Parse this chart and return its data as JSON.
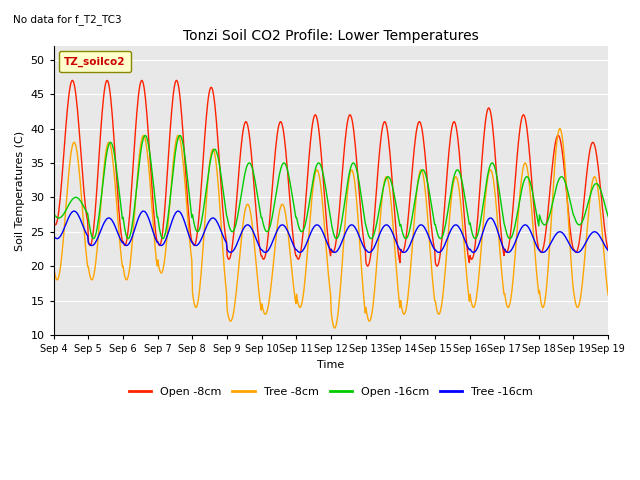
{
  "title": "Tonzi Soil CO2 Profile: Lower Temperatures",
  "subtitle": "No data for f_T2_TC3",
  "xlabel": "Time",
  "ylabel": "Soil Temperatures (C)",
  "ylim": [
    10,
    52
  ],
  "yticks": [
    10,
    15,
    20,
    25,
    30,
    35,
    40,
    45,
    50
  ],
  "xtick_labels": [
    "Sep 4",
    "Sep 5",
    "Sep 6",
    "Sep 7",
    "Sep 8",
    "Sep 9",
    "Sep 10",
    "Sep 11",
    "Sep 12",
    "Sep 13",
    "Sep 14",
    "Sep 15",
    "Sep 16",
    "Sep 17",
    "Sep 18",
    "Sep 19",
    "Sep 19"
  ],
  "legend_label": "TZ_soilco2",
  "line_labels": [
    "Open -8cm",
    "Tree -8cm",
    "Open -16cm",
    "Tree -16cm"
  ],
  "line_colors": [
    "#FF2200",
    "#FFA500",
    "#00CC00",
    "#0000FF"
  ],
  "background_color": "#E8E8E8",
  "n_days": 16,
  "points_per_day": 48,
  "open8_day_max": [
    47,
    47,
    47,
    47,
    46,
    41,
    41,
    42,
    42,
    41,
    41,
    41,
    43,
    42,
    39,
    38
  ],
  "open8_day_min": [
    26,
    23,
    23,
    23,
    23,
    21,
    21,
    21,
    22,
    20,
    22,
    20,
    21,
    22,
    22,
    22
  ],
  "tree8_day_max": [
    38,
    38,
    39,
    39,
    37,
    29,
    29,
    34,
    34,
    33,
    34,
    33,
    34,
    35,
    40,
    33
  ],
  "tree8_day_min": [
    18,
    18,
    18,
    19,
    14,
    12,
    13,
    14,
    11,
    12,
    13,
    13,
    14,
    14,
    14,
    14
  ],
  "open16_day_max": [
    30,
    38,
    39,
    39,
    37,
    35,
    35,
    35,
    35,
    33,
    34,
    34,
    35,
    33,
    33,
    32
  ],
  "open16_day_min": [
    27,
    24,
    24,
    24,
    25,
    25,
    25,
    25,
    24,
    24,
    24,
    24,
    24,
    24,
    26,
    26
  ],
  "tree16_day_max": [
    28,
    27,
    28,
    28,
    27,
    26,
    26,
    26,
    26,
    26,
    26,
    26,
    27,
    26,
    25,
    25
  ],
  "tree16_day_min": [
    24,
    23,
    23,
    23,
    23,
    22,
    22,
    22,
    22,
    22,
    22,
    22,
    22,
    22,
    22,
    22
  ],
  "figwidth": 6.4,
  "figheight": 4.8,
  "dpi": 100
}
